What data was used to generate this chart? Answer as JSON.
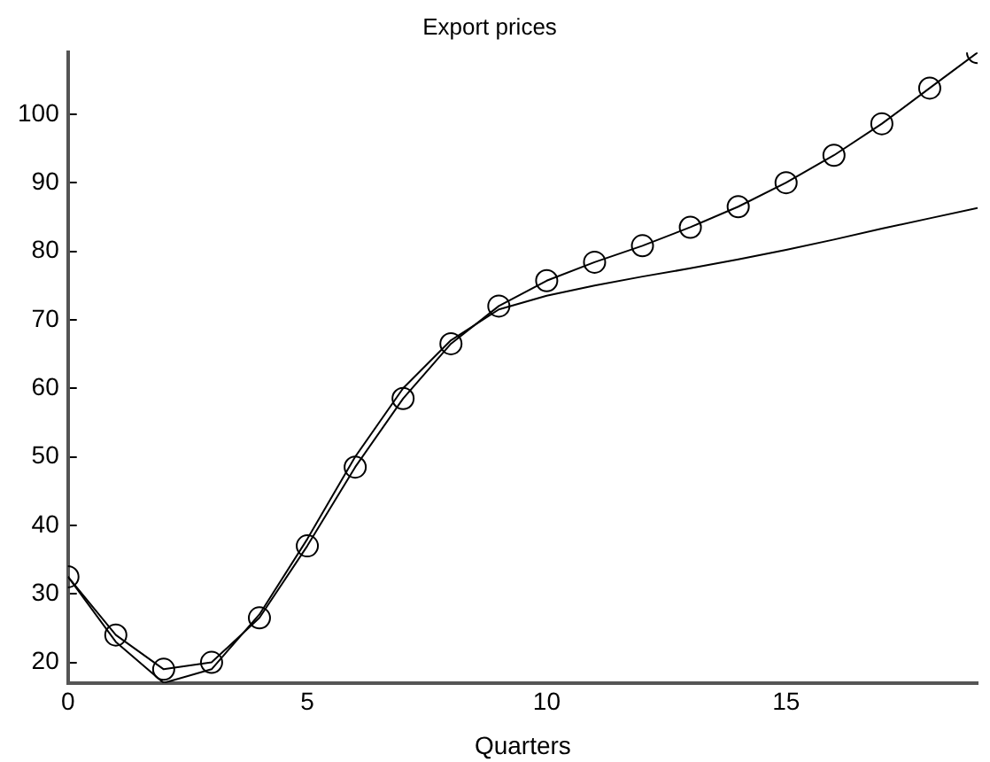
{
  "chart_data": {
    "type": "line",
    "title": "Export prices",
    "xlabel": "Quarters",
    "x": [
      0,
      1,
      2,
      3,
      4,
      5,
      6,
      7,
      8,
      9,
      10,
      11,
      12,
      13,
      14,
      15,
      16,
      17,
      18,
      19
    ],
    "xlim": [
      0,
      19
    ],
    "xticks": [
      0,
      5,
      10,
      15
    ],
    "ylim": [
      17,
      109
    ],
    "yticks": [
      20,
      30,
      40,
      50,
      60,
      70,
      80,
      90,
      100
    ],
    "grid": false,
    "legend": false,
    "line_style": "solid",
    "series": [
      {
        "color": "#000000",
        "marker": "circle",
        "values": [
          32.5,
          24,
          19,
          20,
          26.5,
          37,
          48.5,
          58.5,
          66.5,
          72,
          75.7,
          78.4,
          80.8,
          83.5,
          86.5,
          90,
          94,
          98.6,
          103.8,
          109
        ]
      },
      {
        "color": "#000000",
        "marker": "none",
        "values": [
          32.5,
          23,
          17,
          19,
          27,
          38,
          50,
          60,
          67,
          71.5,
          73.5,
          75,
          76.3,
          77.5,
          78.8,
          80.2,
          81.7,
          83.3,
          84.8,
          86.3
        ]
      }
    ]
  }
}
